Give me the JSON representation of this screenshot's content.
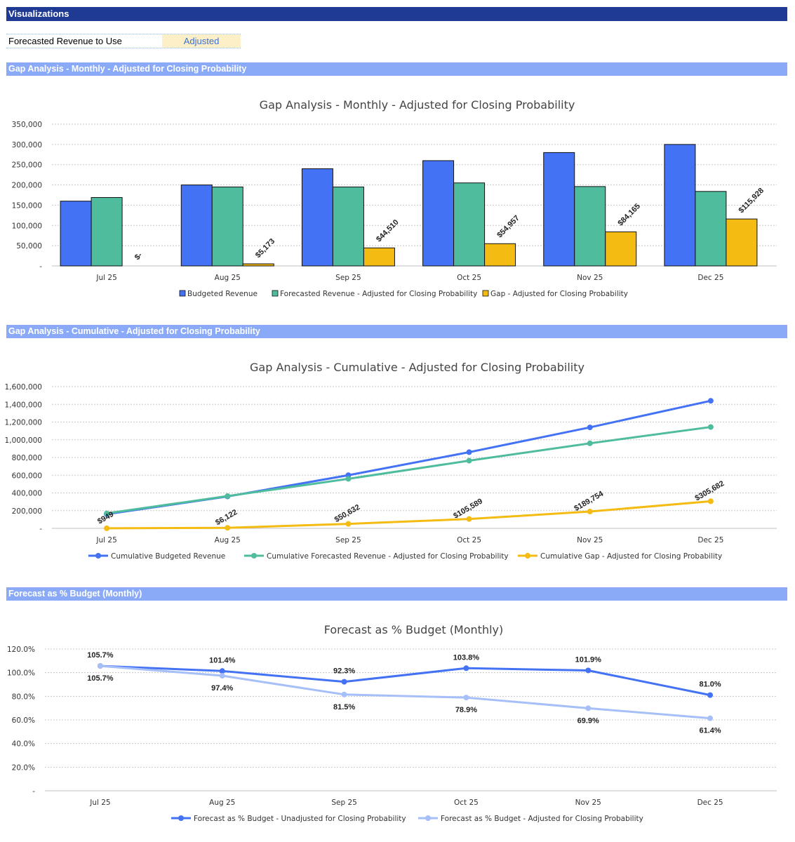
{
  "page": {
    "header_title": "Visualizations",
    "setting_label": "Forecasted Revenue to Use",
    "setting_value": "Adjusted"
  },
  "sections": [
    "Gap Analysis - Monthly - Adjusted for Closing Probability",
    "Gap Analysis - Cumulative - Adjusted for Closing Probability",
    "Forecast as % Budget (Monthly)"
  ],
  "chart_data": [
    {
      "type": "bar",
      "title": "Gap Analysis - Monthly - Adjusted for Closing Probability",
      "categories": [
        "Jul 25",
        "Aug 25",
        "Sep 25",
        "Oct 25",
        "Nov 25",
        "Dec 25"
      ],
      "ylim": [
        0,
        350000
      ],
      "yticks": [
        0,
        50000,
        100000,
        150000,
        200000,
        250000,
        300000,
        350000
      ],
      "ytick_labels": [
        "-",
        "50,000",
        "100,000",
        "150,000",
        "200,000",
        "250,000",
        "300,000",
        "350,000"
      ],
      "grid": true,
      "legend": "bottom",
      "series": [
        {
          "name": "Budgeted Revenue",
          "color": "#4472f4",
          "values": [
            160000,
            200000,
            240000,
            260000,
            280000,
            300000
          ],
          "labels": null
        },
        {
          "name": "Forecasted Revenue - Adjusted for Closing Probability",
          "color": "#4fbc9e",
          "values": [
            169000,
            195000,
            195000,
            205000,
            196000,
            184000
          ],
          "labels": null
        },
        {
          "name": "Gap - Adjusted for Closing Probability",
          "color": "#f4bb12",
          "values": [
            0,
            5173,
            44510,
            54957,
            84165,
            115928
          ],
          "labels": [
            "$-",
            "$5,173",
            "$44,510",
            "$54,957",
            "$84,165",
            "$115,928"
          ]
        }
      ]
    },
    {
      "type": "line",
      "title": "Gap Analysis - Cumulative - Adjusted for Closing Probability",
      "categories": [
        "Jul 25",
        "Aug 25",
        "Sep 25",
        "Oct 25",
        "Nov 25",
        "Dec 25"
      ],
      "ylim": [
        0,
        1600000
      ],
      "yticks": [
        0,
        200000,
        400000,
        600000,
        800000,
        1000000,
        1200000,
        1400000,
        1600000
      ],
      "ytick_labels": [
        "-",
        "200,000",
        "400,000",
        "600,000",
        "800,000",
        "1,000,000",
        "1,200,000",
        "1,400,000",
        "1,600,000"
      ],
      "grid": true,
      "legend": "bottom",
      "series": [
        {
          "name": "Cumulative Budgeted Revenue",
          "color": "#4472f4",
          "values": [
            160000,
            360000,
            600000,
            860000,
            1140000,
            1440000
          ],
          "labels": null
        },
        {
          "name": "Cumulative Forecasted Revenue - Adjusted for Closing Probability",
          "color": "#4fbc9e",
          "values": [
            169000,
            364000,
            559000,
            764000,
            960000,
            1144000
          ],
          "labels": null
        },
        {
          "name": "Cumulative Gap - Adjusted for Closing Probability",
          "color": "#f4bb12",
          "values": [
            949,
            6122,
            50632,
            105589,
            189754,
            305682
          ],
          "labels": [
            "$949",
            "$6,122",
            "$50,632",
            "$105,589",
            "$189,754",
            "$305,682"
          ]
        }
      ]
    },
    {
      "type": "line",
      "title": "Forecast as % Budget (Monthly)",
      "categories": [
        "Jul 25",
        "Aug 25",
        "Sep 25",
        "Oct 25",
        "Nov 25",
        "Dec 25"
      ],
      "ylim": [
        0,
        120
      ],
      "yticks": [
        0,
        20,
        40,
        60,
        80,
        100,
        120
      ],
      "ytick_labels": [
        "-",
        "20.0%",
        "40.0%",
        "60.0%",
        "80.0%",
        "100.0%",
        "120.0%"
      ],
      "grid": true,
      "legend": "bottom",
      "series": [
        {
          "name": "Forecast as % Budget - Unadjusted for Closing Probability",
          "color": "#4472f4",
          "values": [
            105.7,
            101.4,
            92.3,
            103.8,
            101.9,
            81.0
          ],
          "labels": [
            "105.7%",
            "101.4%",
            "92.3%",
            "103.8%",
            "101.9%",
            "81.0%"
          ]
        },
        {
          "name": "Forecast as % Budget - Adjusted for Closing Probability",
          "color": "#a6bff8",
          "values": [
            105.7,
            97.4,
            81.5,
            78.9,
            69.9,
            61.4
          ],
          "labels": [
            "105.7%",
            "97.4%",
            "81.5%",
            "78.9%",
            "69.9%",
            "61.4%"
          ]
        }
      ]
    }
  ]
}
